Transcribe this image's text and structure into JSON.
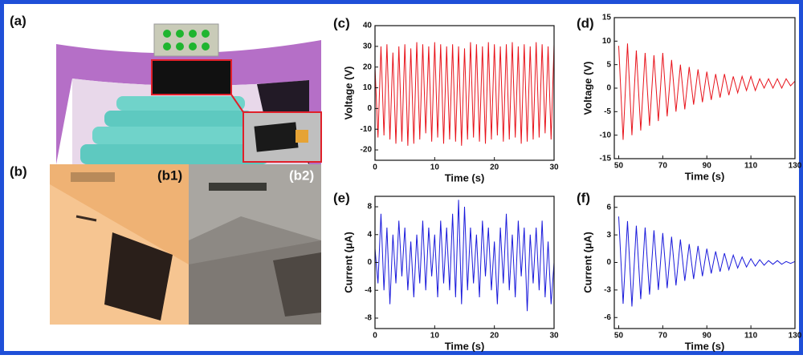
{
  "panels": {
    "a": "(a)",
    "b": "(b)",
    "b1": "(b1)",
    "b2": "(b2)"
  },
  "chart_data": [
    {
      "type": "line",
      "panel_label": "(c)",
      "x_label": "Time (s)",
      "y_label": "Voltage (V)",
      "x": [
        0,
        0.5,
        1,
        1.5,
        2,
        2.5,
        3,
        3.5,
        4,
        4.5,
        5,
        5.5,
        6,
        6.5,
        7,
        7.5,
        8,
        8.5,
        9,
        9.5,
        10,
        10.5,
        11,
        11.5,
        12,
        12.5,
        13,
        13.5,
        14,
        14.5,
        15,
        15.5,
        16,
        16.5,
        17,
        17.5,
        18,
        18.5,
        19,
        19.5,
        20,
        20.5,
        21,
        21.5,
        22,
        22.5,
        23,
        23.5,
        24,
        24.5,
        25,
        25.5,
        26,
        26.5,
        27,
        27.5,
        28,
        28.5,
        29,
        29.5,
        30
      ],
      "series": [
        {
          "color": "#e8131b",
          "values": [
            20,
            -14,
            30,
            -13,
            31,
            -15,
            27,
            -17,
            30,
            -16,
            31,
            -18,
            29,
            -17,
            32,
            -15,
            31,
            -12,
            30,
            -16,
            32,
            -14,
            31,
            -17,
            30,
            -15,
            31,
            -16,
            30,
            -18,
            29,
            -15,
            32,
            -14,
            31,
            -16,
            30,
            -17,
            32,
            -15,
            31,
            -13,
            30,
            -16,
            31,
            -15,
            32,
            -14,
            30,
            -17,
            31,
            -16,
            30,
            -15,
            32,
            -14,
            31,
            -12,
            30,
            -15,
            31
          ]
        }
      ],
      "xlim": [
        0,
        30
      ],
      "xticks": [
        0,
        10,
        20,
        30
      ],
      "ylim": [
        -25,
        40
      ],
      "yticks": [
        -20,
        -10,
        0,
        10,
        20,
        30,
        40
      ]
    },
    {
      "type": "line",
      "panel_label": "(d)",
      "x_label": "Time (s)",
      "y_label": "Voltage (V)",
      "x": [
        50,
        52,
        54,
        56,
        58,
        60,
        62,
        64,
        66,
        68,
        70,
        72,
        74,
        76,
        78,
        80,
        82,
        84,
        86,
        88,
        90,
        92,
        94,
        96,
        98,
        100,
        102,
        104,
        106,
        108,
        110,
        112,
        114,
        116,
        118,
        120,
        122,
        124,
        126,
        128,
        130
      ],
      "series": [
        {
          "color": "#e8131b",
          "values": [
            9,
            -11,
            9.5,
            -10,
            8,
            -9,
            7.5,
            -8,
            7,
            -7,
            7.5,
            -6,
            6,
            -5,
            5,
            -4.5,
            4.5,
            -3.5,
            4,
            -3,
            3.5,
            -2.5,
            3,
            -2,
            3,
            -1.5,
            2.5,
            -1,
            2.5,
            -0.5,
            2.5,
            -0.5,
            2,
            0,
            2,
            0,
            2,
            0,
            2,
            0.5,
            1.5
          ]
        }
      ],
      "xlim": [
        48,
        130
      ],
      "xticks": [
        50,
        70,
        90,
        110,
        130
      ],
      "ylim": [
        -15,
        15
      ],
      "yticks": [
        -15,
        -10,
        -5,
        0,
        5,
        10,
        15
      ]
    },
    {
      "type": "line",
      "panel_label": "(e)",
      "x_label": "Time (s)",
      "y_label": "Current (μA)",
      "x": [
        0,
        0.5,
        1,
        1.5,
        2,
        2.5,
        3,
        3.5,
        4,
        4.5,
        5,
        5.5,
        6,
        6.5,
        7,
        7.5,
        8,
        8.5,
        9,
        9.5,
        10,
        10.5,
        11,
        11.5,
        12,
        12.5,
        13,
        13.5,
        14,
        14.5,
        15,
        15.5,
        16,
        16.5,
        17,
        17.5,
        18,
        18.5,
        19,
        19.5,
        20,
        20.5,
        21,
        21.5,
        22,
        22.5,
        23,
        23.5,
        24,
        24.5,
        25,
        25.5,
        26,
        26.5,
        27,
        27.5,
        28,
        28.5,
        29,
        29.5,
        30
      ],
      "series": [
        {
          "color": "#1a1adb",
          "values": [
            2,
            -3,
            7,
            -4,
            5,
            -6,
            4,
            -3,
            6,
            -2,
            5,
            -4,
            3,
            -5,
            4,
            -3,
            6,
            -4,
            5,
            -2,
            4,
            -5,
            6,
            -3,
            5,
            -4,
            7,
            -5,
            9,
            -6,
            8,
            -4,
            5,
            -3,
            4,
            -5,
            6,
            -2,
            5,
            -4,
            3,
            -6,
            5,
            -3,
            7,
            -4,
            4,
            -5,
            6,
            -2,
            5,
            -7,
            4,
            -3,
            5,
            -4,
            6,
            -5,
            3,
            -6,
            0
          ]
        }
      ],
      "xlim": [
        0,
        30
      ],
      "xticks": [
        0,
        10,
        20,
        30
      ],
      "ylim": [
        -9.5,
        9.5
      ],
      "yticks": [
        -8,
        -4,
        0,
        4,
        8
      ]
    },
    {
      "type": "line",
      "panel_label": "(f)",
      "x_label": "Time (s)",
      "y_label": "Current (μA)",
      "x": [
        50,
        52,
        54,
        56,
        58,
        60,
        62,
        64,
        66,
        68,
        70,
        72,
        74,
        76,
        78,
        80,
        82,
        84,
        86,
        88,
        90,
        92,
        94,
        96,
        98,
        100,
        102,
        104,
        106,
        108,
        110,
        112,
        114,
        116,
        118,
        120,
        122,
        124,
        126,
        128,
        130
      ],
      "series": [
        {
          "color": "#1a1adb",
          "values": [
            5,
            -4.5,
            4.5,
            -4.8,
            4,
            -4,
            3.8,
            -3.5,
            3.5,
            -3,
            3.2,
            -2.8,
            2.8,
            -2.5,
            2.5,
            -2,
            2,
            -1.8,
            1.8,
            -1.5,
            1.5,
            -1.2,
            1.2,
            -1,
            1,
            -0.8,
            0.8,
            -0.6,
            0.6,
            -0.5,
            0.4,
            -0.4,
            0.3,
            -0.3,
            0.2,
            -0.2,
            0.2,
            -0.2,
            0.1,
            -0.1,
            0.1
          ]
        }
      ],
      "xlim": [
        48,
        130
      ],
      "xticks": [
        50,
        70,
        90,
        110,
        130
      ],
      "ylim": [
        -7.2,
        7.2
      ],
      "yticks": [
        -6,
        -3,
        0,
        3,
        6
      ]
    }
  ]
}
